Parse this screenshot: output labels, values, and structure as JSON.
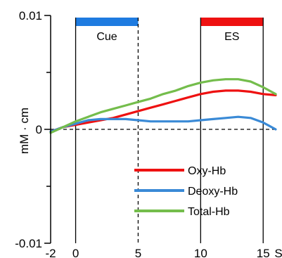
{
  "chart_data": {
    "type": "line",
    "xlabel": "S",
    "ylabel": "mM · cm",
    "xlim": [
      -2,
      16
    ],
    "ylim": [
      -0.01,
      0.01
    ],
    "x_ticks": [
      {
        "value": -2,
        "label": "-2"
      },
      {
        "value": 0,
        "label": "0"
      },
      {
        "value": 5,
        "label": "5"
      },
      {
        "value": 10,
        "label": "10"
      },
      {
        "value": 15,
        "label": "15"
      }
    ],
    "y_ticks": [
      {
        "value": -0.01,
        "label": "-0.01"
      },
      {
        "value": 0,
        "label": "0"
      },
      {
        "value": 0.01,
        "label": "0.01"
      }
    ],
    "y_minor_ticks": [
      -0.005,
      0.005
    ],
    "zero_line": {
      "style": "dashed",
      "value": 0
    },
    "grid": false,
    "legend_placement": "bottom-right",
    "periods": [
      {
        "name": "Cue",
        "start": 0,
        "end": 5,
        "color": "#1e7be0",
        "end_line": "dashed"
      },
      {
        "name": "ES",
        "start": 10,
        "end": 15,
        "color": "#ee1111",
        "end_line": "solid"
      }
    ],
    "series": [
      {
        "name": "Oxy-Hb",
        "color": "#ee1111",
        "x": [
          -2,
          -1,
          0,
          1,
          2,
          3,
          4,
          5,
          6,
          7,
          8,
          9,
          10,
          11,
          12,
          13,
          14,
          15,
          16
        ],
        "y": [
          -0.0002,
          0.0002,
          0.0004,
          0.0006,
          0.0008,
          0.001,
          0.0013,
          0.0016,
          0.0019,
          0.0022,
          0.0025,
          0.0028,
          0.0031,
          0.0033,
          0.0034,
          0.0034,
          0.0033,
          0.0031,
          0.003
        ]
      },
      {
        "name": "Deoxy-Hb",
        "color": "#3a8ad6",
        "x": [
          -2,
          -1,
          0,
          1,
          2,
          3,
          4,
          5,
          6,
          7,
          8,
          9,
          10,
          11,
          12,
          13,
          14,
          15,
          16
        ],
        "y": [
          -0.0002,
          0.0002,
          0.0005,
          0.0008,
          0.0009,
          0.0009,
          0.0009,
          0.0008,
          0.0007,
          0.0007,
          0.0007,
          0.0007,
          0.0008,
          0.0009,
          0.001,
          0.0011,
          0.001,
          0.0006,
          0.0
        ]
      },
      {
        "name": "Total-Hb",
        "color": "#74bd4c",
        "x": [
          -2,
          -1,
          0,
          1,
          2,
          3,
          4,
          5,
          6,
          7,
          8,
          9,
          10,
          11,
          12,
          13,
          14,
          15,
          16
        ],
        "y": [
          -0.0003,
          0.0002,
          0.0007,
          0.0011,
          0.0015,
          0.0018,
          0.0021,
          0.0024,
          0.0027,
          0.0031,
          0.0034,
          0.0038,
          0.0041,
          0.0043,
          0.0044,
          0.0044,
          0.0042,
          0.0037,
          0.0031
        ]
      }
    ]
  }
}
